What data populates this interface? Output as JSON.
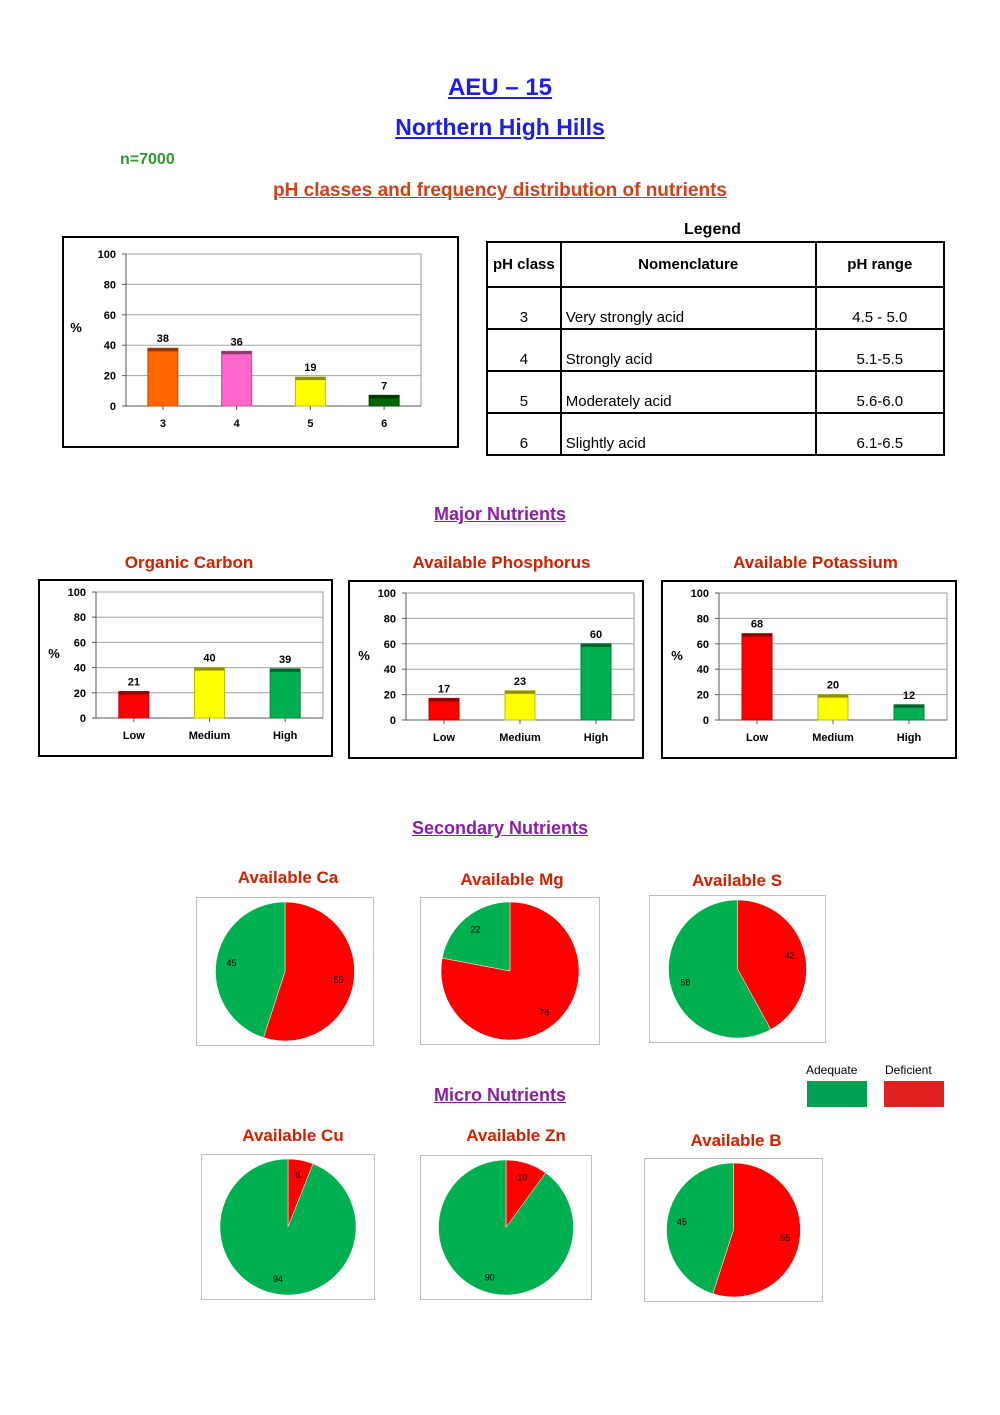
{
  "header": {
    "title": "AEU – 15",
    "subtitle": "Northern High Hills",
    "sample_count": "n=7000",
    "ph_section_title": "pH classes and frequency distribution of nutrients"
  },
  "legend_table": {
    "title": "Legend",
    "headers": [
      "pH class",
      "Nomenclature",
      "pH range"
    ],
    "rows": [
      {
        "ph_class": "3",
        "nomenclature": "Very strongly acid",
        "ph_range": "4.5 - 5.0"
      },
      {
        "ph_class": "4",
        "nomenclature": "Strongly acid",
        "ph_range": "5.1-5.5"
      },
      {
        "ph_class": "5",
        "nomenclature": "Moderately acid",
        "ph_range": "5.6-6.0"
      },
      {
        "ph_class": "6",
        "nomenclature": "Slightly acid",
        "ph_range": "6.1-6.5"
      }
    ]
  },
  "sections": {
    "major": "Major Nutrients",
    "secondary": "Secondary Nutrients",
    "micro": "Micro Nutrients"
  },
  "pie_key": {
    "adequate_label": "Adequate",
    "deficient_label": "Deficient",
    "adequate_color": "#00b050",
    "deficient_color": "#ff0000"
  },
  "chart_data": [
    {
      "id": "ph",
      "type": "bar",
      "title": "",
      "ylabel": "%",
      "ylim": [
        0,
        100
      ],
      "yticks": [
        0,
        20,
        40,
        60,
        80,
        100
      ],
      "grid": true,
      "categories": [
        "3",
        "4",
        "5",
        "6"
      ],
      "values": [
        38,
        36,
        19,
        7
      ],
      "colors": [
        "#ff6600",
        "#ff66cc",
        "#ffff00",
        "#006600"
      ]
    },
    {
      "id": "oc",
      "type": "bar",
      "title": "Organic Carbon",
      "ylabel": "%",
      "ylim": [
        0,
        100
      ],
      "yticks": [
        0,
        20,
        40,
        60,
        80,
        100
      ],
      "grid": true,
      "categories": [
        "Low",
        "Medium",
        "High"
      ],
      "values": [
        21,
        40,
        39
      ],
      "colors": [
        "#ff0000",
        "#ffff00",
        "#00b050"
      ]
    },
    {
      "id": "p",
      "type": "bar",
      "title": "Available Phosphorus",
      "ylabel": "%",
      "ylim": [
        0,
        100
      ],
      "yticks": [
        0,
        20,
        40,
        60,
        80,
        100
      ],
      "grid": true,
      "categories": [
        "Low",
        "Medium",
        "High"
      ],
      "values": [
        17,
        23,
        60
      ],
      "colors": [
        "#ff0000",
        "#ffff00",
        "#00b050"
      ]
    },
    {
      "id": "k",
      "type": "bar",
      "title": "Available Potassium",
      "ylabel": "%",
      "ylim": [
        0,
        100
      ],
      "yticks": [
        0,
        20,
        40,
        60,
        80,
        100
      ],
      "grid": true,
      "categories": [
        "Low",
        "Medium",
        "High"
      ],
      "values": [
        68,
        20,
        12
      ],
      "colors": [
        "#ff0000",
        "#ffff00",
        "#00b050"
      ]
    },
    {
      "id": "ca",
      "type": "pie",
      "title": "Available Ca",
      "slices": [
        {
          "name": "Adequate",
          "value": 45
        },
        {
          "name": "Deficient",
          "value": 55
        }
      ]
    },
    {
      "id": "mg",
      "type": "pie",
      "title": "Available Mg",
      "slices": [
        {
          "name": "Adequate",
          "value": 22
        },
        {
          "name": "Deficient",
          "value": 78
        }
      ]
    },
    {
      "id": "s",
      "type": "pie",
      "title": "Available S",
      "slices": [
        {
          "name": "Adequate",
          "value": 58
        },
        {
          "name": "Deficient",
          "value": 42
        }
      ]
    },
    {
      "id": "cu",
      "type": "pie",
      "title": "Available Cu",
      "slices": [
        {
          "name": "Adequate",
          "value": 94
        },
        {
          "name": "Deficient",
          "value": 6
        }
      ]
    },
    {
      "id": "zn",
      "type": "pie",
      "title": "Available Zn",
      "slices": [
        {
          "name": "Adequate",
          "value": 90
        },
        {
          "name": "Deficient",
          "value": 10
        }
      ]
    },
    {
      "id": "b",
      "type": "pie",
      "title": "Available B",
      "slices": [
        {
          "name": "Adequate",
          "value": 45
        },
        {
          "name": "Deficient",
          "value": 55
        }
      ]
    }
  ]
}
